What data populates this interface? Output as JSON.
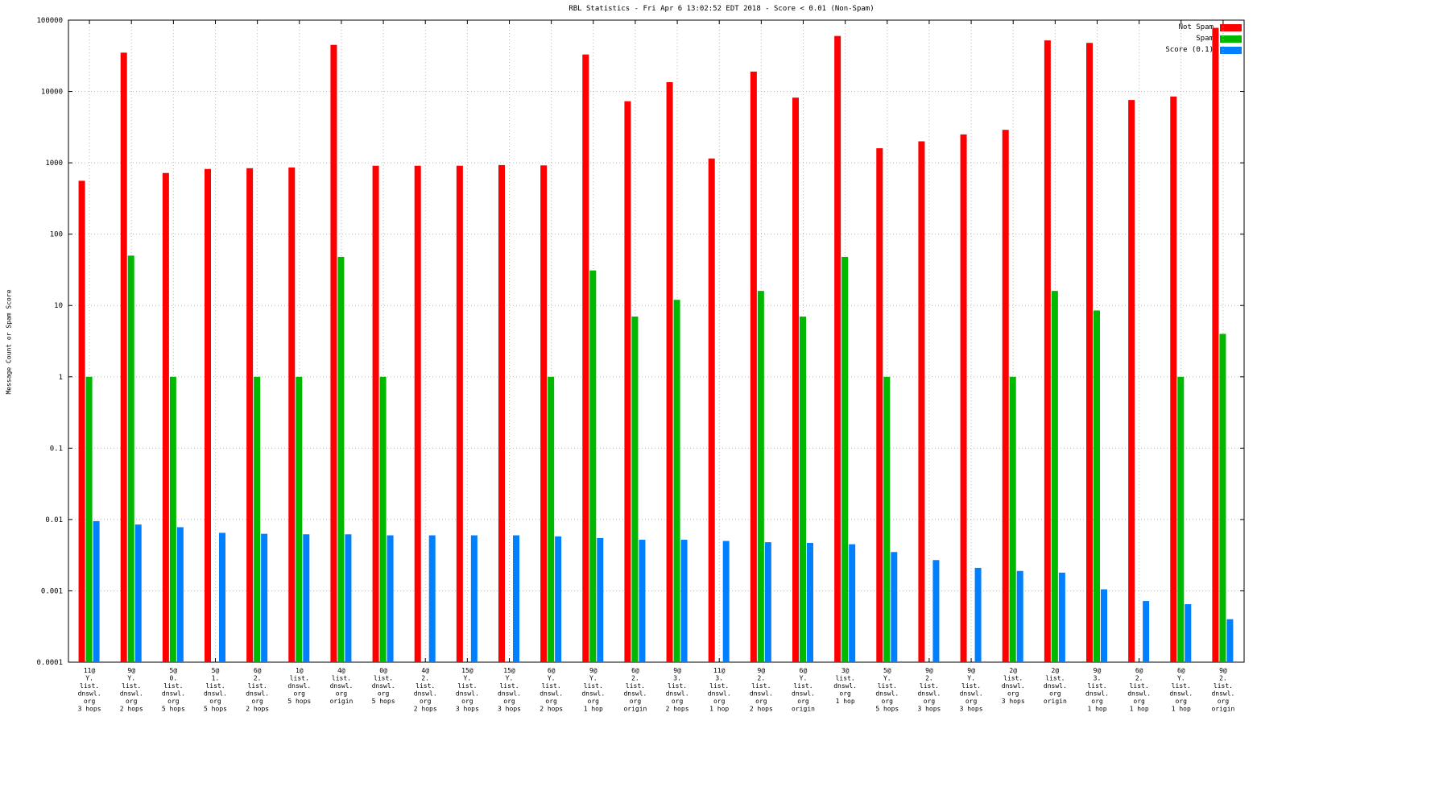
{
  "chart_data": {
    "type": "bar",
    "title": "RBL Statistics - Fri Apr  6 13:02:52 EDT 2018 - Score < 0.01 (Non-Spam)",
    "ylabel": "Message Count or Spam Score",
    "xlabel": "",
    "scale": "log",
    "ylim": [
      0.0001,
      100000
    ],
    "grid": "dotted",
    "legend_position": "top-right",
    "yticks": [
      {
        "v": 100000,
        "label": "100000"
      },
      {
        "v": 10000,
        "label": "10000"
      },
      {
        "v": 1000,
        "label": "1000"
      },
      {
        "v": 100,
        "label": "100"
      },
      {
        "v": 10,
        "label": "10"
      },
      {
        "v": 1,
        "label": "1"
      },
      {
        "v": 0.1,
        "label": "0.1"
      },
      {
        "v": 0.01,
        "label": "0.01"
      },
      {
        "v": 0.001,
        "label": "0.001"
      },
      {
        "v": 0.0001,
        "label": "0.0001"
      }
    ],
    "categories": [
      [
        "11@",
        "Y.",
        "list.",
        "dnswl.",
        "org",
        "3 hops"
      ],
      [
        "9@",
        "Y.",
        "list.",
        "dnswl.",
        "org",
        "2 hops"
      ],
      [
        "5@",
        "0.",
        "list.",
        "dnswl.",
        "org",
        "5 hops"
      ],
      [
        "5@",
        "1.",
        "list.",
        "dnswl.",
        "org",
        "5 hops"
      ],
      [
        "6@",
        "2.",
        "list.",
        "dnswl.",
        "org",
        "2 hops"
      ],
      [
        "1@",
        "list.",
        "dnswl.",
        "org",
        "5 hops"
      ],
      [
        "4@",
        "list.",
        "dnswl.",
        "org",
        "origin"
      ],
      [
        "0@",
        "list.",
        "dnswl.",
        "org",
        "5 hops"
      ],
      [
        "4@",
        "2.",
        "list.",
        "dnswl.",
        "org",
        "2 hops"
      ],
      [
        "15@",
        "Y.",
        "list.",
        "dnswl.",
        "org",
        "3 hops"
      ],
      [
        "15@",
        "Y.",
        "list.",
        "dnswl.",
        "org",
        "3 hops"
      ],
      [
        "6@",
        "Y.",
        "list.",
        "dnswl.",
        "org",
        "2 hops"
      ],
      [
        "9@",
        "Y.",
        "list.",
        "dnswl.",
        "org",
        "1 hop"
      ],
      [
        "6@",
        "2.",
        "list.",
        "dnswl.",
        "org",
        "origin"
      ],
      [
        "9@",
        "3.",
        "list.",
        "dnswl.",
        "org",
        "2 hops"
      ],
      [
        "11@",
        "3.",
        "list.",
        "dnswl.",
        "org",
        "1 hop"
      ],
      [
        "9@",
        "2.",
        "list.",
        "dnswl.",
        "org",
        "2 hops"
      ],
      [
        "6@",
        "Y.",
        "list.",
        "dnswl.",
        "org",
        "origin"
      ],
      [
        "3@",
        "list.",
        "dnswl.",
        "org",
        "1 hop"
      ],
      [
        "5@",
        "Y.",
        "list.",
        "dnswl.",
        "org",
        "5 hops"
      ],
      [
        "9@",
        "2.",
        "list.",
        "dnswl.",
        "org",
        "3 hops"
      ],
      [
        "9@",
        "Y.",
        "list.",
        "dnswl.",
        "org",
        "3 hops"
      ],
      [
        "2@",
        "list.",
        "dnswl.",
        "org",
        "3 hops"
      ],
      [
        "2@",
        "list.",
        "dnswl.",
        "org",
        "origin"
      ],
      [
        "9@",
        "3.",
        "list.",
        "dnswl.",
        "org",
        "1 hop"
      ],
      [
        "6@",
        "2.",
        "list.",
        "dnswl.",
        "org",
        "1 hop"
      ],
      [
        "6@",
        "Y.",
        "list.",
        "dnswl.",
        "org",
        "1 hop"
      ],
      [
        "9@",
        "2.",
        "list.",
        "dnswl.",
        "org",
        "origin"
      ]
    ],
    "series": [
      {
        "name": "Not Spam",
        "color": "#ff0000",
        "values": [
          560,
          35000,
          720,
          820,
          840,
          860,
          45000,
          910,
          910,
          910,
          930,
          920,
          33000,
          7300,
          13500,
          1150,
          19000,
          8200,
          60000,
          1600,
          2000,
          2500,
          2900,
          52000,
          48000,
          7600,
          8500,
          78000
        ]
      },
      {
        "name": "Spam",
        "color": "#00b800",
        "values": [
          1,
          50,
          1,
          0,
          1,
          1,
          48,
          1,
          0,
          0,
          0,
          1,
          31,
          7,
          12,
          0,
          16,
          7,
          48,
          1,
          0,
          0,
          1,
          16,
          8.5,
          0,
          1,
          4
        ]
      },
      {
        "name": "Score (0.1)",
        "color": "#0080ff",
        "values": [
          0.0095,
          0.0085,
          0.0078,
          0.0065,
          0.0063,
          0.0062,
          0.0062,
          0.006,
          0.006,
          0.006,
          0.006,
          0.0058,
          0.0055,
          0.0052,
          0.0052,
          0.005,
          0.0048,
          0.0047,
          0.0045,
          0.0035,
          0.0027,
          0.0021,
          0.0019,
          0.0018,
          0.00105,
          0.00072,
          0.00065,
          0.0004
        ]
      }
    ]
  }
}
